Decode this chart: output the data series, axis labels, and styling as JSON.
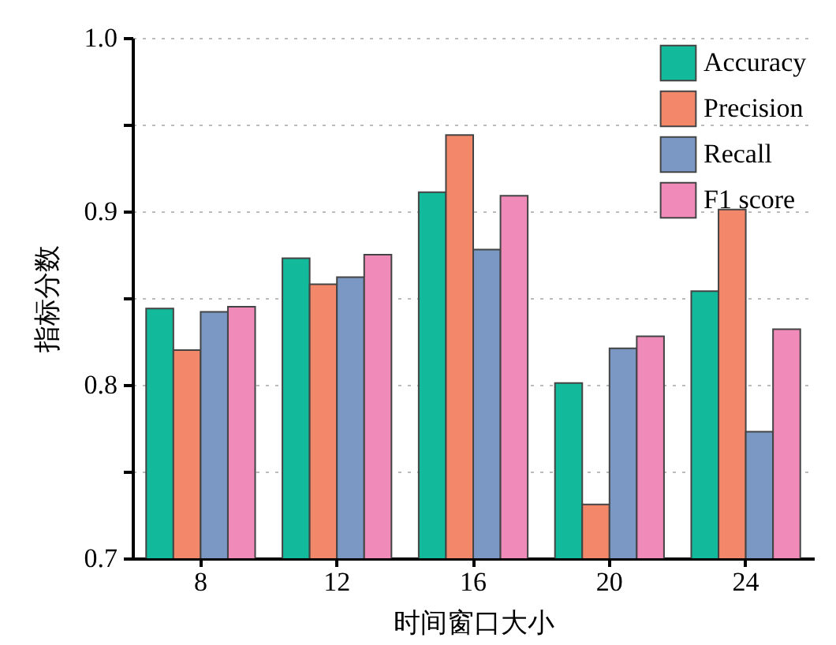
{
  "chart_data": {
    "type": "bar",
    "xlabel": "时间窗口大小",
    "ylabel": "指标分数",
    "categories": [
      "8",
      "12",
      "16",
      "20",
      "24"
    ],
    "series": [
      {
        "name": "Accuracy",
        "color": "#13b99b",
        "values": [
          0.844,
          0.873,
          0.911,
          0.801,
          0.854
        ]
      },
      {
        "name": "Precision",
        "color": "#f2876a",
        "values": [
          0.82,
          0.858,
          0.944,
          0.731,
          0.901
        ]
      },
      {
        "name": "Recall",
        "color": "#7b98c4",
        "values": [
          0.842,
          0.862,
          0.878,
          0.821,
          0.773
        ]
      },
      {
        "name": "F1 score",
        "color": "#ef8ab9",
        "values": [
          0.845,
          0.875,
          0.909,
          0.828,
          0.832
        ]
      }
    ],
    "ylim": [
      0.7,
      1.0
    ],
    "yticks": [
      0.7,
      {
        "value": 0.75,
        "label": null
      },
      0.8,
      {
        "value": 0.85,
        "label": null
      },
      0.9,
      {
        "value": 0.95,
        "label": null
      },
      {
        "value": 1.0,
        "label": "1.0"
      }
    ],
    "grid": "y",
    "legend": "top right"
  }
}
